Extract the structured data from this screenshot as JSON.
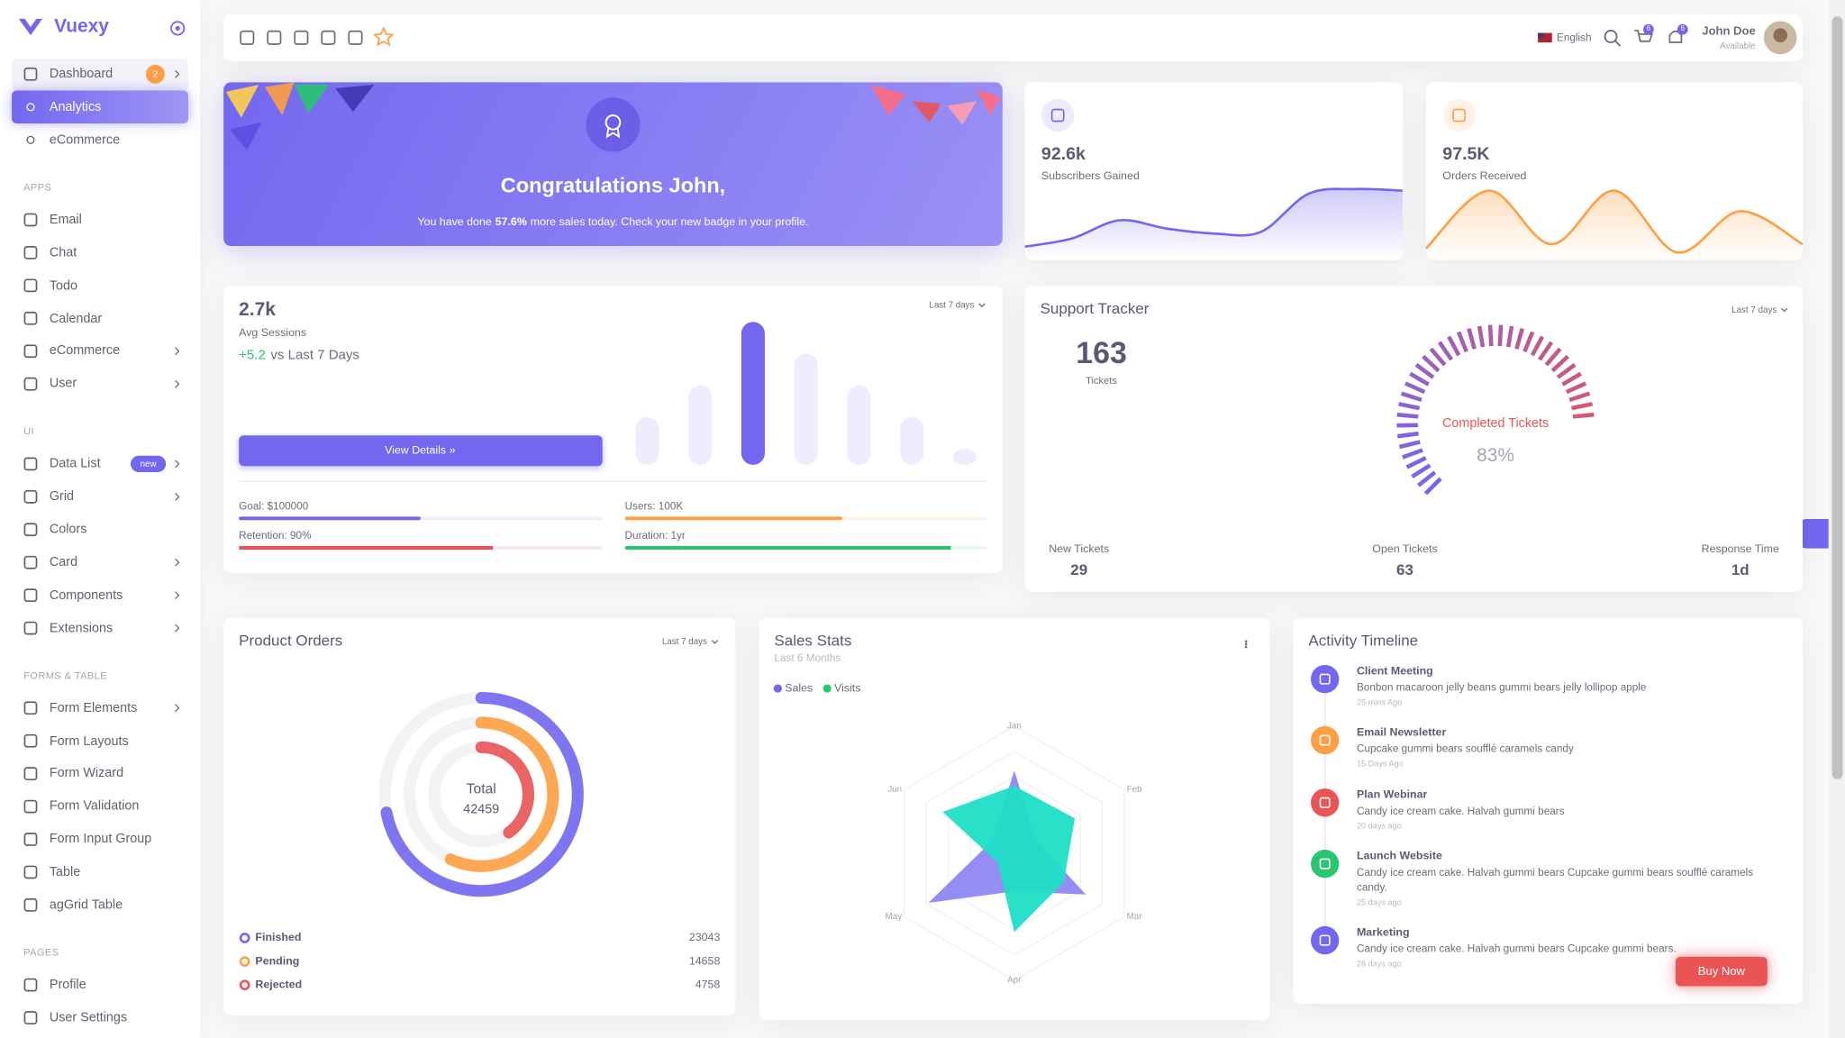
{
  "sidebar": {
    "brand": "Vuexy",
    "sections": [
      {
        "items": [
          {
            "label": "Dashboard",
            "badge": "2",
            "arrow": true
          },
          {
            "label": "Analytics",
            "active": true,
            "sub": true
          },
          {
            "label": "eCommerce",
            "sub": true
          }
        ]
      },
      {
        "title": "APPS",
        "items": [
          {
            "label": "Email"
          },
          {
            "label": "Chat"
          },
          {
            "label": "Todo"
          },
          {
            "label": "Calendar"
          },
          {
            "label": "eCommerce",
            "arrow": true
          },
          {
            "label": "User",
            "arrow": true
          }
        ]
      },
      {
        "title": "UI",
        "items": [
          {
            "label": "Data List",
            "badge": "new",
            "arrow": true
          },
          {
            "label": "Grid",
            "arrow": true
          },
          {
            "label": "Colors"
          },
          {
            "label": "Card",
            "arrow": true
          },
          {
            "label": "Components",
            "arrow": true
          },
          {
            "label": "Extensions",
            "arrow": true
          }
        ]
      },
      {
        "title": "FORMS & TABLE",
        "items": [
          {
            "label": "Form Elements",
            "arrow": true
          },
          {
            "label": "Form Layouts"
          },
          {
            "label": "Form Wizard"
          },
          {
            "label": "Form Validation"
          },
          {
            "label": "Form Input Group"
          },
          {
            "label": "Table"
          },
          {
            "label": "agGrid Table"
          }
        ]
      },
      {
        "title": "PAGES",
        "items": [
          {
            "label": "Profile"
          },
          {
            "label": "User Settings"
          }
        ]
      }
    ]
  },
  "navbar": {
    "language": "English",
    "cart_badge": "6",
    "notification_badge": "6",
    "user_name": "John Doe",
    "user_status": "Available"
  },
  "congrats": {
    "title": "Congratulations John,",
    "text_before": "You have done",
    "highlight": "57.6%",
    "text_after": "more sales today. Check your new badge in your profile."
  },
  "stats": [
    {
      "value": "92.6k",
      "label": "Subscribers Gained",
      "color": "#7367f0",
      "sparkline": [
        12,
        22,
        44,
        34,
        28,
        30,
        76,
        82,
        80
      ]
    },
    {
      "value": "97.5K",
      "label": "Orders Received",
      "color": "#ff9f43",
      "sparkline": [
        10,
        80,
        15,
        80,
        5,
        55,
        15
      ]
    }
  ],
  "sessions": {
    "value": "2.7k",
    "label": "Avg Sessions",
    "change": "+5.2",
    "change_text": "vs Last 7 Days",
    "range": "Last 7 days",
    "button": "View Details »",
    "bars": [
      30,
      50,
      90,
      70,
      50,
      30,
      10
    ],
    "highlight_index": 2,
    "progress": [
      {
        "label": "Goal: $100000",
        "percent": 50,
        "color": "#7367f0"
      },
      {
        "label": "Users: 100K",
        "percent": 60,
        "color": "#ff9f43"
      },
      {
        "label": "Retention: 90%",
        "percent": 70,
        "color": "#ea5455"
      },
      {
        "label": "Duration: 1yr",
        "percent": 90,
        "color": "#28c76f"
      }
    ]
  },
  "support": {
    "title": "Support Tracker",
    "range": "Last 7 days",
    "total": "163",
    "total_label": "Tickets",
    "gauge": {
      "label": "Completed Tickets",
      "value": 83,
      "value_label": "83%"
    },
    "stats": [
      {
        "label": "New Tickets",
        "value": "29"
      },
      {
        "label": "Open Tickets",
        "value": "63"
      },
      {
        "label": "Response Time",
        "value": "1d"
      }
    ]
  },
  "product_orders": {
    "title": "Product Orders",
    "range": "Last 7 days",
    "total_label": "Total",
    "total": 42459,
    "series": [
      {
        "name": "Finished",
        "value": 23043,
        "arc": 72,
        "color": "#7367f0"
      },
      {
        "name": "Pending",
        "value": 14658,
        "arc": 57,
        "color": "#ff9f43"
      },
      {
        "name": "Rejected",
        "value": 4758,
        "arc": 40,
        "color": "#ea5455"
      }
    ]
  },
  "sales_stats": {
    "title": "Sales Stats",
    "subtitle": "Last 6 Months",
    "categories": [
      "Jan",
      "Feb",
      "Mar",
      "Apr",
      "May",
      "Jun"
    ],
    "series": [
      {
        "name": "Sales",
        "color": "#7367f0",
        "values": [
          65,
          20,
          65,
          30,
          78,
          20
        ]
      },
      {
        "name": "Visits",
        "color": "#28c76f",
        "fill": "#1ddfc6",
        "values": [
          53,
          55,
          45,
          62,
          15,
          65
        ]
      }
    ]
  },
  "activity": {
    "title": "Activity Timeline",
    "items": [
      {
        "title": "Client Meeting",
        "text": "Bonbon macaroon jelly beans gummi bears jelly lollipop apple",
        "time": "25 mins Ago",
        "color": "#7367f0"
      },
      {
        "title": "Email Newsletter",
        "text": "Cupcake gummi bears soufflé caramels candy",
        "time": "15 Days Ago",
        "color": "#ff9f43"
      },
      {
        "title": "Plan Webinar",
        "text": "Candy ice cream cake. Halvah gummi bears",
        "time": "20 days ago",
        "color": "#ea5455"
      },
      {
        "title": "Launch Website",
        "text": "Candy ice cream cake. Halvah gummi bears Cupcake gummi bears soufflé caramels candy.",
        "time": "25 days ago",
        "color": "#28c76f"
      },
      {
        "title": "Marketing",
        "text": "Candy ice cream cake. Halvah gummi bears Cupcake gummi bears.",
        "time": "28 days ago",
        "color": "#7367f0"
      }
    ],
    "button": "Buy Now"
  }
}
